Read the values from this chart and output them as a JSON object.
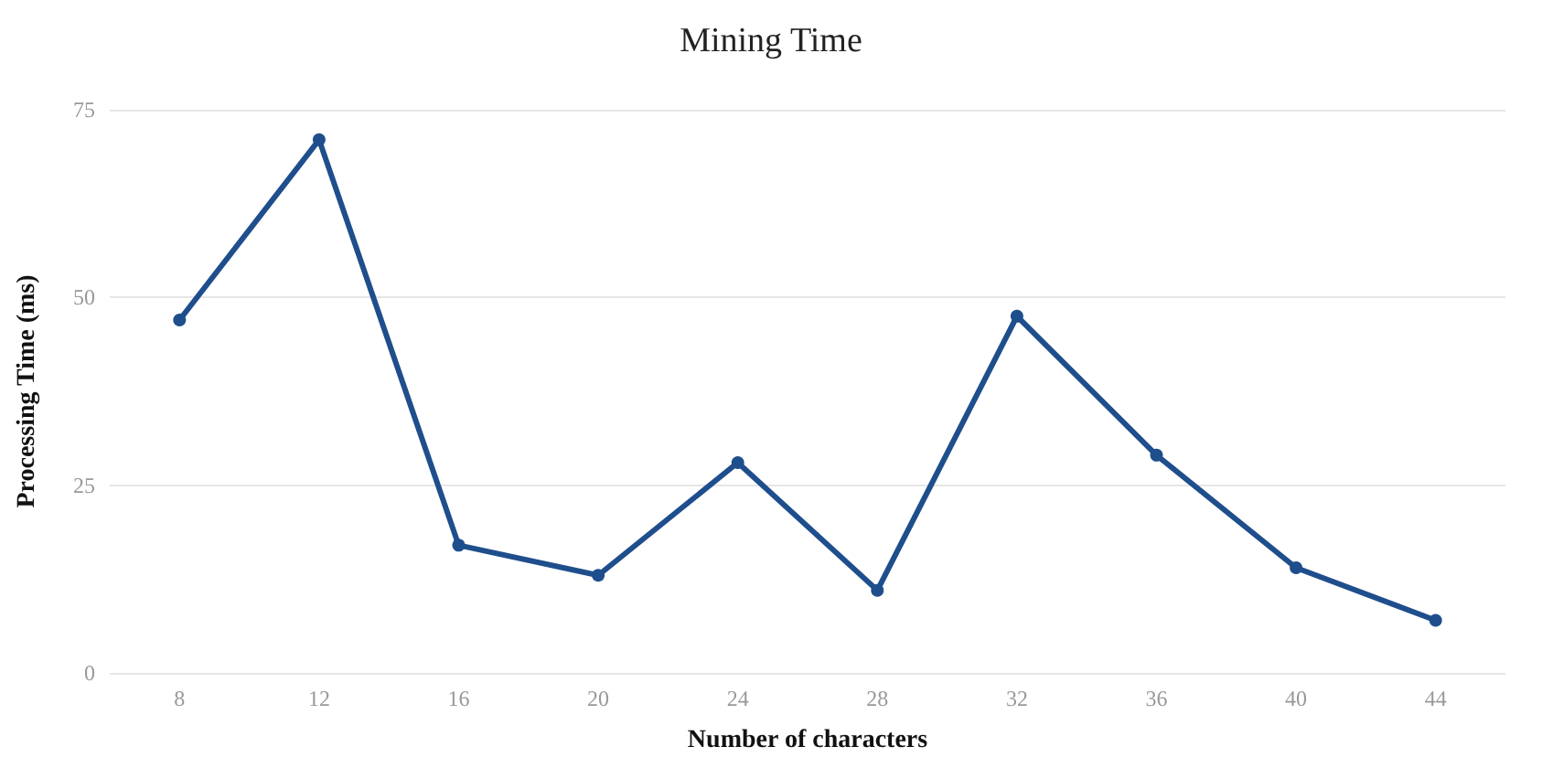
{
  "chart_data": {
    "type": "line",
    "title": "Mining Time",
    "xlabel": "Number of characters",
    "ylabel": "Processing Time (ms)",
    "categories": [
      "8",
      "12",
      "16",
      "20",
      "24",
      "28",
      "32",
      "36",
      "40",
      "44"
    ],
    "series": [
      {
        "color": "#1f4e8c",
        "values": [
          47,
          71,
          17,
          13,
          28,
          11,
          47.5,
          29,
          14,
          7
        ]
      }
    ],
    "ylim": [
      0,
      75
    ],
    "yticks": [
      0,
      25,
      50,
      75
    ],
    "grid": "y",
    "marker": "circle",
    "line_style": "solid"
  }
}
